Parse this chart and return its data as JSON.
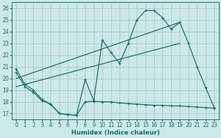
{
  "xlabel": "Humidex (Indice chaleur)",
  "background_color": "#cce8e8",
  "grid_color": "#aacccc",
  "line_color": "#1a6b6b",
  "xlim": [
    -0.5,
    23.5
  ],
  "ylim": [
    16.5,
    26.5
  ],
  "yticks": [
    17,
    18,
    19,
    20,
    21,
    22,
    23,
    24,
    25,
    26
  ],
  "xticks": [
    0,
    1,
    2,
    3,
    4,
    5,
    6,
    7,
    8,
    9,
    10,
    11,
    12,
    13,
    14,
    15,
    16,
    17,
    18,
    19,
    20,
    21,
    22,
    23
  ],
  "series_main_x": [
    0,
    1,
    2,
    3,
    4,
    5,
    6,
    7,
    8,
    9,
    10,
    11,
    12,
    13,
    14,
    15,
    16,
    17,
    18,
    19,
    20,
    21,
    22,
    23
  ],
  "series_main_y": [
    20.8,
    19.5,
    19.0,
    18.2,
    17.8,
    17.0,
    16.9,
    16.85,
    19.9,
    18.1,
    23.3,
    22.2,
    21.3,
    23.0,
    25.0,
    25.8,
    25.8,
    25.2,
    24.2,
    24.8,
    23.0,
    21.0,
    19.2,
    17.5
  ],
  "series_flat_x": [
    0,
    1,
    2,
    3,
    4,
    5,
    6,
    7,
    8,
    9,
    10,
    11,
    12,
    13,
    14,
    15,
    16,
    17,
    18,
    19,
    20,
    21,
    22,
    23
  ],
  "series_flat_y": [
    20.5,
    19.3,
    18.8,
    18.1,
    17.8,
    17.0,
    16.9,
    16.85,
    18.0,
    18.05,
    18.0,
    18.0,
    17.9,
    17.85,
    17.8,
    17.75,
    17.7,
    17.7,
    17.65,
    17.65,
    17.6,
    17.55,
    17.5,
    17.45
  ],
  "trend1_x": [
    0,
    19
  ],
  "trend1_y": [
    20.0,
    24.8
  ],
  "trend2_x": [
    0,
    19
  ],
  "trend2_y": [
    19.3,
    23.0
  ]
}
